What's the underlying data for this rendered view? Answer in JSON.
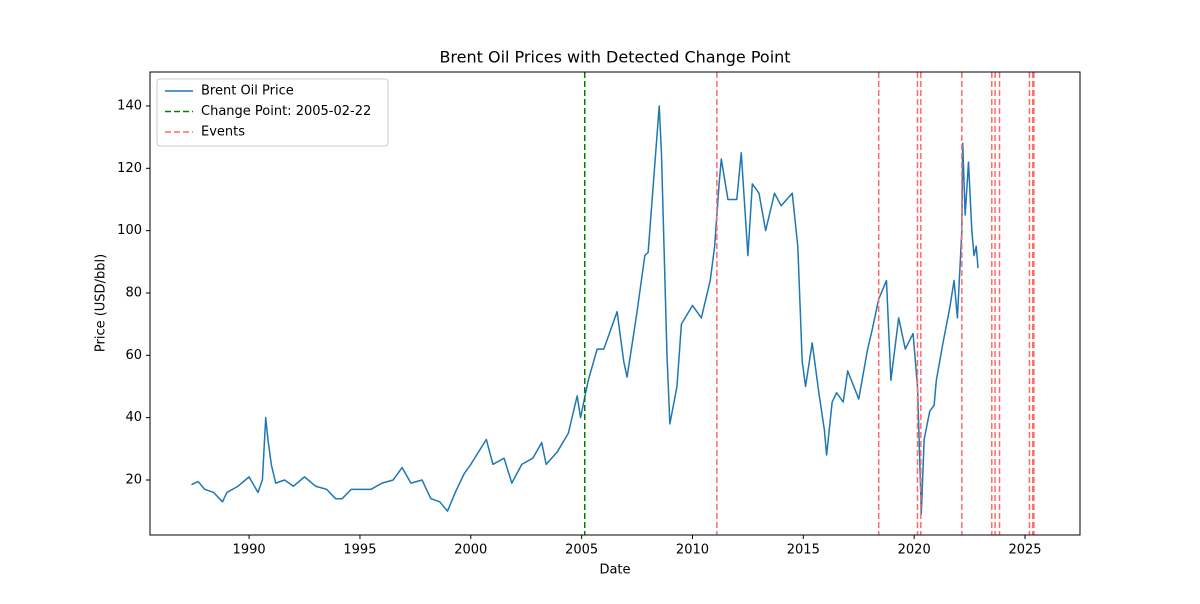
{
  "chart_data": {
    "type": "line",
    "title": "Brent Oil Prices with Detected Change Point",
    "x_label": "Date",
    "y_label": "Price (USD/bbl)",
    "x": [
      1987.4,
      1987.7,
      1988.0,
      1988.4,
      1988.8,
      1989.0,
      1989.5,
      1990.0,
      1990.4,
      1990.6,
      1990.75,
      1990.85,
      1991.0,
      1991.2,
      1991.6,
      1992.0,
      1992.5,
      1993.0,
      1993.5,
      1993.9,
      1994.2,
      1994.6,
      1995.0,
      1995.5,
      1996.0,
      1996.5,
      1996.9,
      1997.3,
      1997.8,
      1998.2,
      1998.6,
      1998.95,
      1999.3,
      1999.7,
      2000.0,
      2000.7,
      2001.0,
      2001.5,
      2001.85,
      2002.3,
      2002.8,
      2003.2,
      2003.4,
      2003.9,
      2004.4,
      2004.8,
      2004.95,
      2005.3,
      2005.7,
      2006.0,
      2006.6,
      2006.9,
      2007.05,
      2007.5,
      2007.85,
      2008.0,
      2008.5,
      2008.6,
      2008.85,
      2008.98,
      2009.3,
      2009.5,
      2010.0,
      2010.4,
      2010.8,
      2011.0,
      2011.2,
      2011.3,
      2011.6,
      2012.0,
      2012.2,
      2012.5,
      2012.7,
      2013.0,
      2013.3,
      2013.7,
      2014.0,
      2014.5,
      2014.75,
      2014.95,
      2015.1,
      2015.4,
      2015.7,
      2015.95,
      2016.05,
      2016.3,
      2016.5,
      2016.8,
      2017.0,
      2017.5,
      2017.9,
      2018.1,
      2018.4,
      2018.75,
      2018.95,
      2019.3,
      2019.6,
      2019.95,
      2020.15,
      2020.3,
      2020.32,
      2020.45,
      2020.7,
      2020.9,
      2021.0,
      2021.3,
      2021.6,
      2021.8,
      2021.95,
      2022.15,
      2022.19,
      2022.3,
      2022.45,
      2022.6,
      2022.7,
      2022.8,
      2022.88
    ],
    "series": [
      {
        "name": "Brent Oil Price",
        "color": "#1f77b4",
        "values": [
          18.5,
          19.5,
          17,
          16,
          13,
          16,
          18,
          21,
          16,
          20,
          40,
          33,
          25,
          19,
          20,
          18,
          21,
          18,
          17,
          14,
          14,
          17,
          17,
          17,
          19,
          20,
          24,
          19,
          20,
          14,
          13,
          10,
          16,
          22,
          25,
          33,
          25,
          27,
          19,
          25,
          27,
          32,
          25,
          29,
          35,
          47,
          40,
          52,
          62,
          62,
          74,
          58,
          53,
          74,
          92,
          93,
          140,
          125,
          60,
          38,
          50,
          70,
          76,
          72,
          84,
          95,
          115,
          123,
          110,
          110,
          125,
          92,
          115,
          112,
          100,
          112,
          108,
          112,
          95,
          58,
          50,
          64,
          48,
          36,
          28,
          45,
          48,
          45,
          55,
          46,
          62,
          68,
          78,
          84,
          52,
          72,
          62,
          67,
          50,
          15,
          9,
          33,
          42,
          44,
          52,
          64,
          75,
          84,
          72,
          100,
          128,
          105,
          122,
          100,
          92,
          95,
          88
        ]
      }
    ],
    "change_point": {
      "label": "Change Point: 2005-02-22",
      "x": 2005.14,
      "color": "#008000"
    },
    "events": {
      "label": "Events",
      "color": "#ff6b6b",
      "x": [
        2011.1,
        2018.4,
        2020.15,
        2020.3,
        2022.15,
        2023.5,
        2023.65,
        2023.85,
        2025.2,
        2025.35,
        2025.4
      ]
    },
    "xlim": [
      1985.53,
      2027.48
    ],
    "ylim": [
      2.35,
      150.9
    ],
    "xticks": [
      1990,
      1995,
      2000,
      2005,
      2010,
      2015,
      2020,
      2025
    ],
    "yticks": [
      20,
      40,
      60,
      80,
      100,
      120,
      140
    ],
    "grid": false,
    "legend": "upper left"
  }
}
